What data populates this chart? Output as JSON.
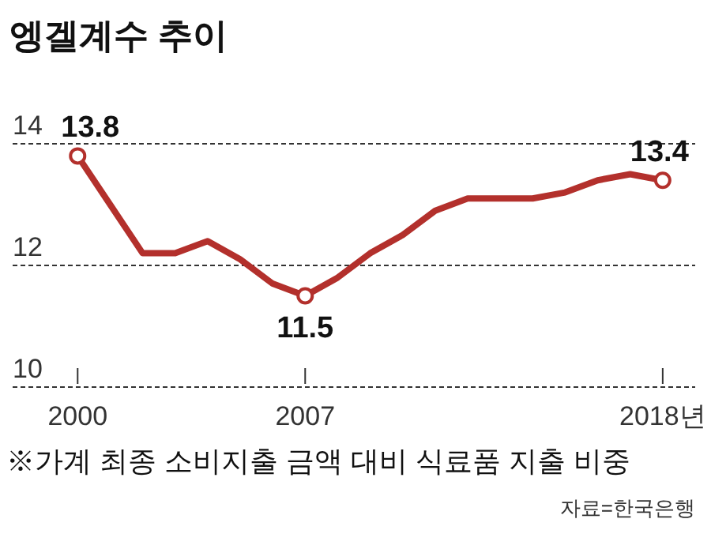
{
  "chart_data": {
    "type": "line",
    "title": "엥겔계수 추이",
    "x": [
      2000,
      2002,
      2003,
      2004,
      2005,
      2006,
      2007,
      2008,
      2009,
      2010,
      2011,
      2012,
      2013,
      2014,
      2015,
      2016,
      2017,
      2018
    ],
    "series": [
      {
        "color": "#b3302c",
        "values": [
          13.8,
          12.2,
          12.2,
          12.4,
          12.1,
          11.7,
          11.5,
          11.8,
          12.2,
          12.5,
          12.9,
          13.1,
          13.1,
          13.1,
          13.2,
          13.4,
          13.5,
          13.4
        ]
      }
    ],
    "xlim": [
      1998,
      2019
    ],
    "ylim": [
      10,
      14
    ],
    "xticks": [
      2000,
      2007,
      {
        "value": 2018,
        "label": "2018년"
      }
    ],
    "yticks": [
      10,
      12,
      14
    ],
    "grid": "y",
    "marker": "none",
    "line_style": "solid",
    "annotations": [
      {
        "text": "13.8",
        "x": 2000,
        "y": 13.8
      },
      {
        "text": "11.5",
        "x": 2007,
        "y": 11.5
      },
      {
        "text": "13.4",
        "x": 2018,
        "y": 13.4
      },
      "※가계 최종 소비지출 금액 대비 식료품 지출 비중",
      "자료=한국은행"
    ]
  }
}
